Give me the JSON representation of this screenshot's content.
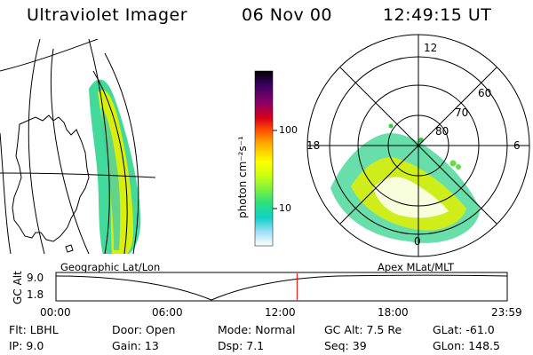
{
  "header": {
    "instrument": "Ultraviolet Imager",
    "date": "06 Nov 00",
    "time": "12:49:15 UT"
  },
  "geo_panel": {
    "label": "Geographic Lat/Lon"
  },
  "apex_panel": {
    "label": "Apex MLat/MLT",
    "mlt_labels": [
      "12",
      "18",
      "6",
      "0"
    ],
    "mlat_labels": [
      "60",
      "70",
      "80"
    ]
  },
  "colorbar": {
    "unit_label": "photon cm⁻²s⁻¹",
    "ticks": [
      "100",
      "10"
    ],
    "colors": [
      "#000000",
      "#1a0030",
      "#4a0070",
      "#8a006a",
      "#c80018",
      "#ff4000",
      "#ff8c00",
      "#ffc000",
      "#ffff00",
      "#d2ff00",
      "#88ff30",
      "#30f070",
      "#00d8c8",
      "#60c8f0",
      "#c0e8ff",
      "#ffffff"
    ]
  },
  "altitude": {
    "axis_label": "GC Alt",
    "y_ticks": [
      "9.0",
      "1.8"
    ],
    "x_ticks": [
      "00:00",
      "06:00",
      "12:00",
      "18:00",
      "23:59"
    ],
    "current_time_hours": 12.82,
    "marker_color": "#ff0000"
  },
  "info": {
    "filter": "Flt: LBHL",
    "ip": "IP:  9.0",
    "door": "Door: Open",
    "gain": "Gain: 13",
    "mode": "Mode: Normal",
    "dsp": "Dsp:    7.1",
    "gc_alt": "GC Alt: 7.5 Re",
    "seq": "Seq: 39",
    "glat": "GLat:  -61.0",
    "glon": "GLon: 148.5"
  }
}
